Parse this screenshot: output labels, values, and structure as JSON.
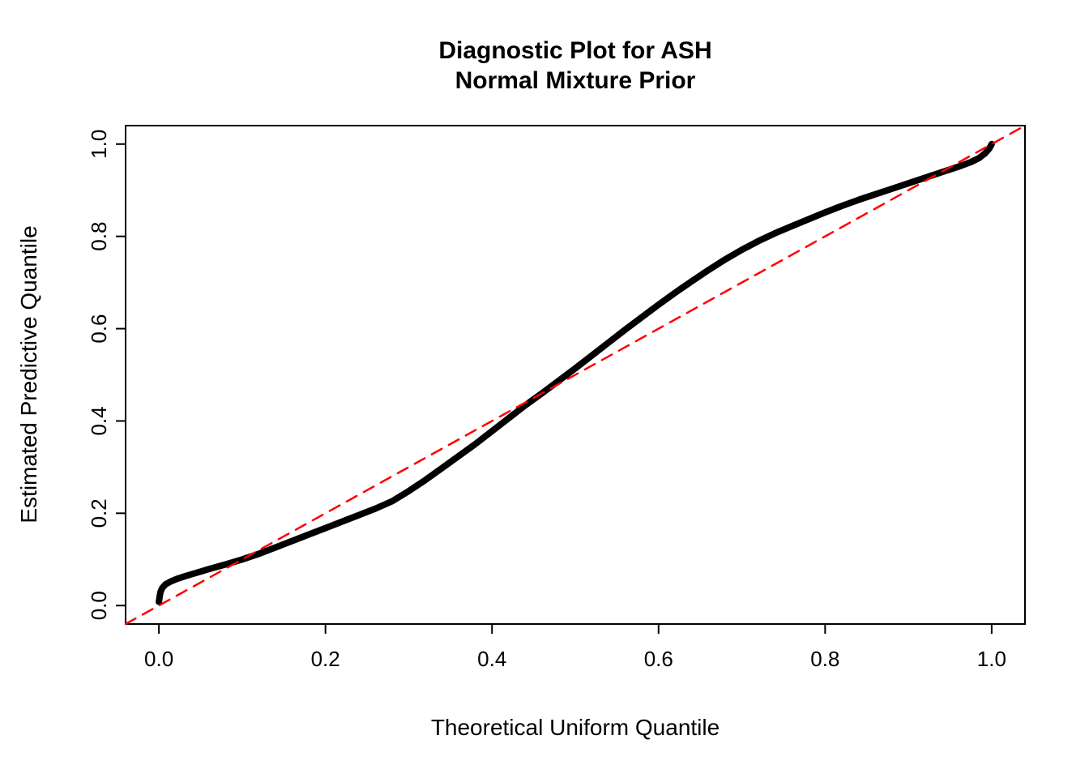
{
  "chart_data": {
    "type": "line",
    "title_line1": "Diagnostic Plot for ASH",
    "title_line2": "Normal Mixture Prior",
    "xlabel": "Theoretical Uniform Quantile",
    "ylabel": "Estimated Predictive Quantile",
    "xlim": [
      -0.04,
      1.04
    ],
    "ylim": [
      -0.04,
      1.04
    ],
    "grid": false,
    "legend": "none",
    "xticks": [
      0.0,
      0.2,
      0.4,
      0.6,
      0.8,
      1.0
    ],
    "xtick_labels": [
      "0.0",
      "0.2",
      "0.4",
      "0.6",
      "0.8",
      "1.0"
    ],
    "yticks": [
      0.0,
      0.2,
      0.4,
      0.6,
      0.8,
      1.0
    ],
    "ytick_labels": [
      "0.0",
      "0.2",
      "0.4",
      "0.6",
      "0.8",
      "1.0"
    ],
    "colors": {
      "axis": "#000000",
      "curve": "#000000",
      "reference": "#FF0000",
      "background": "#FFFFFF"
    },
    "series": [
      {
        "name": "estimated-vs-theoretical-quantiles",
        "style": "solid",
        "color": "#000000",
        "width": 8,
        "points": [
          [
            0.0,
            0.008
          ],
          [
            0.001,
            0.02
          ],
          [
            0.002,
            0.03
          ],
          [
            0.004,
            0.038
          ],
          [
            0.008,
            0.046
          ],
          [
            0.014,
            0.052
          ],
          [
            0.022,
            0.058
          ],
          [
            0.032,
            0.064
          ],
          [
            0.045,
            0.071
          ],
          [
            0.06,
            0.079
          ],
          [
            0.08,
            0.089
          ],
          [
            0.1,
            0.1
          ],
          [
            0.12,
            0.112
          ],
          [
            0.14,
            0.126
          ],
          [
            0.16,
            0.14
          ],
          [
            0.18,
            0.154
          ],
          [
            0.2,
            0.168
          ],
          [
            0.22,
            0.182
          ],
          [
            0.24,
            0.196
          ],
          [
            0.26,
            0.21
          ],
          [
            0.28,
            0.226
          ],
          [
            0.3,
            0.248
          ],
          [
            0.32,
            0.272
          ],
          [
            0.34,
            0.298
          ],
          [
            0.36,
            0.324
          ],
          [
            0.38,
            0.35
          ],
          [
            0.4,
            0.378
          ],
          [
            0.42,
            0.406
          ],
          [
            0.44,
            0.434
          ],
          [
            0.46,
            0.46
          ],
          [
            0.48,
            0.487
          ],
          [
            0.5,
            0.514
          ],
          [
            0.52,
            0.542
          ],
          [
            0.54,
            0.57
          ],
          [
            0.56,
            0.598
          ],
          [
            0.58,
            0.625
          ],
          [
            0.6,
            0.652
          ],
          [
            0.62,
            0.678
          ],
          [
            0.64,
            0.703
          ],
          [
            0.66,
            0.727
          ],
          [
            0.68,
            0.75
          ],
          [
            0.7,
            0.771
          ],
          [
            0.72,
            0.79
          ],
          [
            0.74,
            0.807
          ],
          [
            0.76,
            0.822
          ],
          [
            0.78,
            0.837
          ],
          [
            0.8,
            0.852
          ],
          [
            0.82,
            0.866
          ],
          [
            0.84,
            0.879
          ],
          [
            0.86,
            0.891
          ],
          [
            0.88,
            0.903
          ],
          [
            0.9,
            0.915
          ],
          [
            0.92,
            0.927
          ],
          [
            0.94,
            0.939
          ],
          [
            0.96,
            0.951
          ],
          [
            0.975,
            0.961
          ],
          [
            0.985,
            0.97
          ],
          [
            0.992,
            0.98
          ],
          [
            0.997,
            0.99
          ],
          [
            1.0,
            1.0
          ]
        ]
      },
      {
        "name": "y-equals-x-reference",
        "style": "dashed",
        "color": "#FF0000",
        "width": 2.5,
        "points": [
          [
            -0.04,
            -0.04
          ],
          [
            1.04,
            1.04
          ]
        ]
      }
    ]
  }
}
